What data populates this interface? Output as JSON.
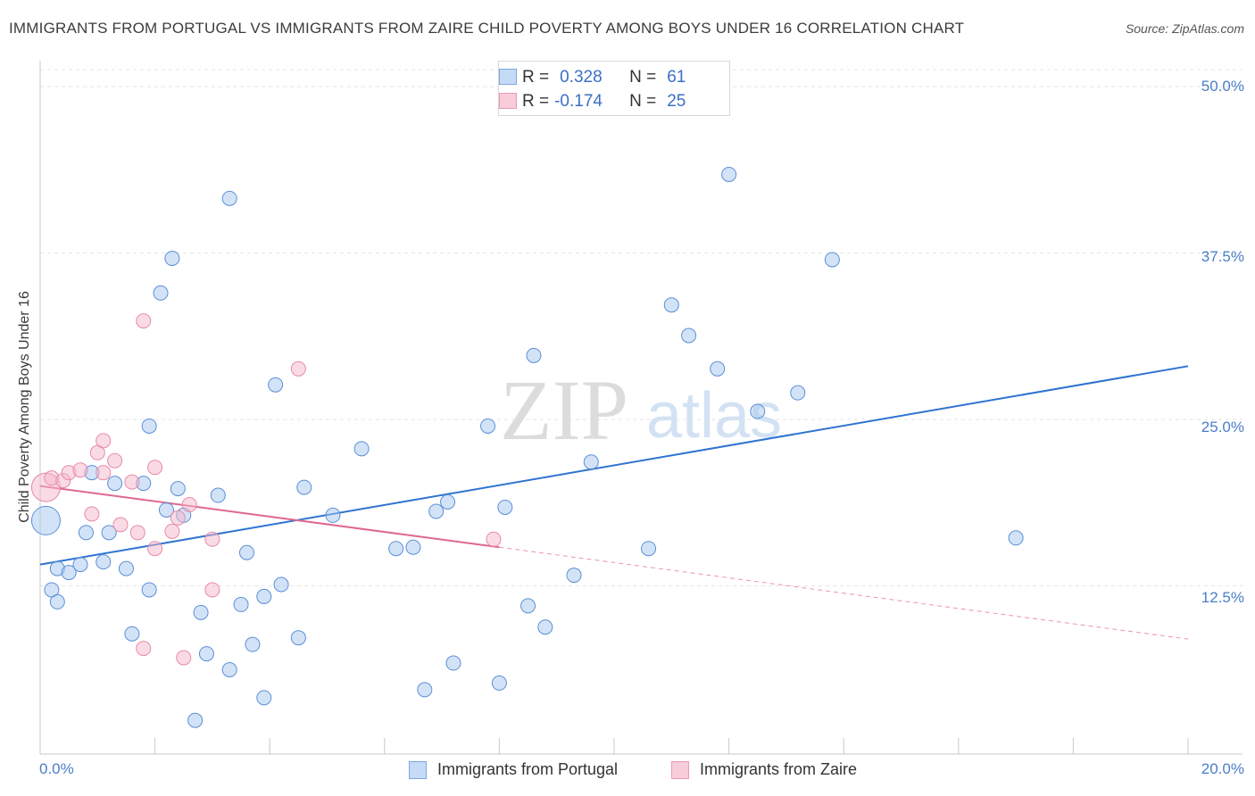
{
  "header": {
    "title": "IMMIGRANTS FROM PORTUGAL VS IMMIGRANTS FROM ZAIRE CHILD POVERTY AMONG BOYS UNDER 16 CORRELATION CHART",
    "source": "Source: ZipAtlas.com"
  },
  "watermark": {
    "zip": "ZIP",
    "atlas": "atlas"
  },
  "legend": {
    "portugal": {
      "r_label": "R =",
      "r_value": "0.328",
      "n_label": "N =",
      "n_value": "61",
      "color": "#a8c8f0"
    },
    "zaire": {
      "r_label": "R =",
      "r_value": "-0.174",
      "n_label": "N =",
      "n_value": "25",
      "color": "#f6b8cb"
    }
  },
  "bottom_legend": {
    "portugal": "Immigrants from Portugal",
    "zaire": "Immigrants from Zaire"
  },
  "axes": {
    "ylabel": "Child Poverty Among Boys Under 16",
    "y_ticks": [
      "50.0%",
      "37.5%",
      "25.0%",
      "12.5%"
    ],
    "x_min_label": "0.0%",
    "x_max_label": "20.0%"
  },
  "chart_data": {
    "type": "scatter",
    "title": "IMMIGRANTS FROM PORTUGAL VS IMMIGRANTS FROM ZAIRE CHILD POVERTY AMONG BOYS UNDER 16 CORRELATION CHART",
    "xlabel": "",
    "ylabel": "Child Poverty Among Boys Under 16",
    "xlim": [
      0,
      20
    ],
    "ylim": [
      0,
      50
    ],
    "y_ticks": [
      12.5,
      25.0,
      37.5,
      50.0
    ],
    "grid": true,
    "series": [
      {
        "name": "Immigrants from Portugal",
        "color": "#a8c8f0",
        "stroke": "#5b8fd6",
        "r": 0.328,
        "n": 61,
        "trend": {
          "x": [
            0,
            20
          ],
          "y": [
            14.1,
            29.0
          ],
          "color": "#2e74d0"
        },
        "points": [
          [
            0.1,
            17.4,
            "large"
          ],
          [
            0.2,
            12.2
          ],
          [
            0.3,
            11.3
          ],
          [
            0.3,
            13.8
          ],
          [
            0.5,
            13.5
          ],
          [
            0.7,
            14.1
          ],
          [
            0.8,
            16.5
          ],
          [
            0.9,
            21.0
          ],
          [
            1.1,
            14.3
          ],
          [
            1.2,
            16.5
          ],
          [
            1.3,
            20.2
          ],
          [
            1.5,
            13.8
          ],
          [
            1.6,
            8.9
          ],
          [
            1.8,
            20.2
          ],
          [
            1.9,
            12.2
          ],
          [
            1.9,
            24.5
          ],
          [
            2.1,
            34.5
          ],
          [
            2.2,
            18.2
          ],
          [
            2.3,
            37.1
          ],
          [
            2.4,
            19.8
          ],
          [
            2.5,
            17.8
          ],
          [
            2.7,
            2.4
          ],
          [
            2.8,
            10.5
          ],
          [
            2.9,
            7.4
          ],
          [
            3.1,
            19.3
          ],
          [
            3.3,
            41.6
          ],
          [
            3.3,
            6.2
          ],
          [
            3.5,
            11.1
          ],
          [
            3.6,
            15.0
          ],
          [
            3.7,
            8.1
          ],
          [
            3.9,
            11.7
          ],
          [
            3.9,
            4.1
          ],
          [
            4.1,
            27.6
          ],
          [
            4.2,
            12.6
          ],
          [
            4.5,
            8.6
          ],
          [
            4.6,
            19.9
          ],
          [
            5.1,
            17.8
          ],
          [
            5.6,
            22.8
          ],
          [
            6.2,
            15.3
          ],
          [
            6.5,
            15.4
          ],
          [
            6.7,
            4.7
          ],
          [
            6.9,
            18.1
          ],
          [
            7.1,
            18.8
          ],
          [
            7.2,
            6.7
          ],
          [
            7.8,
            24.5
          ],
          [
            8.0,
            5.2
          ],
          [
            8.1,
            18.4
          ],
          [
            8.5,
            11.0
          ],
          [
            8.6,
            29.8
          ],
          [
            8.8,
            9.4
          ],
          [
            9.3,
            13.3
          ],
          [
            9.6,
            21.8
          ],
          [
            10.6,
            15.3
          ],
          [
            11.0,
            33.6
          ],
          [
            11.3,
            31.3
          ],
          [
            11.8,
            28.8
          ],
          [
            12.0,
            43.4
          ],
          [
            12.5,
            25.6
          ],
          [
            13.2,
            27.0
          ],
          [
            13.8,
            37.0
          ],
          [
            17.0,
            16.1
          ]
        ]
      },
      {
        "name": "Immigrants from Zaire",
        "color": "#f6b8cb",
        "stroke": "#e68aa8",
        "r": -0.174,
        "n": 25,
        "trend": {
          "x": [
            0,
            8
          ],
          "y": [
            20.0,
            15.4
          ],
          "color": "#e06890"
        },
        "trend_extended": {
          "x": [
            8,
            20
          ],
          "y": [
            15.4,
            8.5
          ]
        },
        "points": [
          [
            0.1,
            19.9,
            "large"
          ],
          [
            0.2,
            20.6
          ],
          [
            0.4,
            20.4
          ],
          [
            0.5,
            21.0
          ],
          [
            0.7,
            21.2
          ],
          [
            0.9,
            17.9
          ],
          [
            1.0,
            22.5
          ],
          [
            1.1,
            23.4
          ],
          [
            1.1,
            21.0
          ],
          [
            1.3,
            21.9
          ],
          [
            1.4,
            17.1
          ],
          [
            1.6,
            20.3
          ],
          [
            1.7,
            16.5
          ],
          [
            1.8,
            32.4
          ],
          [
            1.8,
            7.8
          ],
          [
            2.0,
            15.3
          ],
          [
            2.0,
            21.4
          ],
          [
            2.3,
            16.6
          ],
          [
            2.4,
            17.6
          ],
          [
            2.5,
            7.1
          ],
          [
            2.6,
            18.6
          ],
          [
            3.0,
            12.2
          ],
          [
            3.0,
            16.0
          ],
          [
            4.5,
            28.8
          ],
          [
            7.9,
            16.0
          ]
        ]
      }
    ]
  }
}
